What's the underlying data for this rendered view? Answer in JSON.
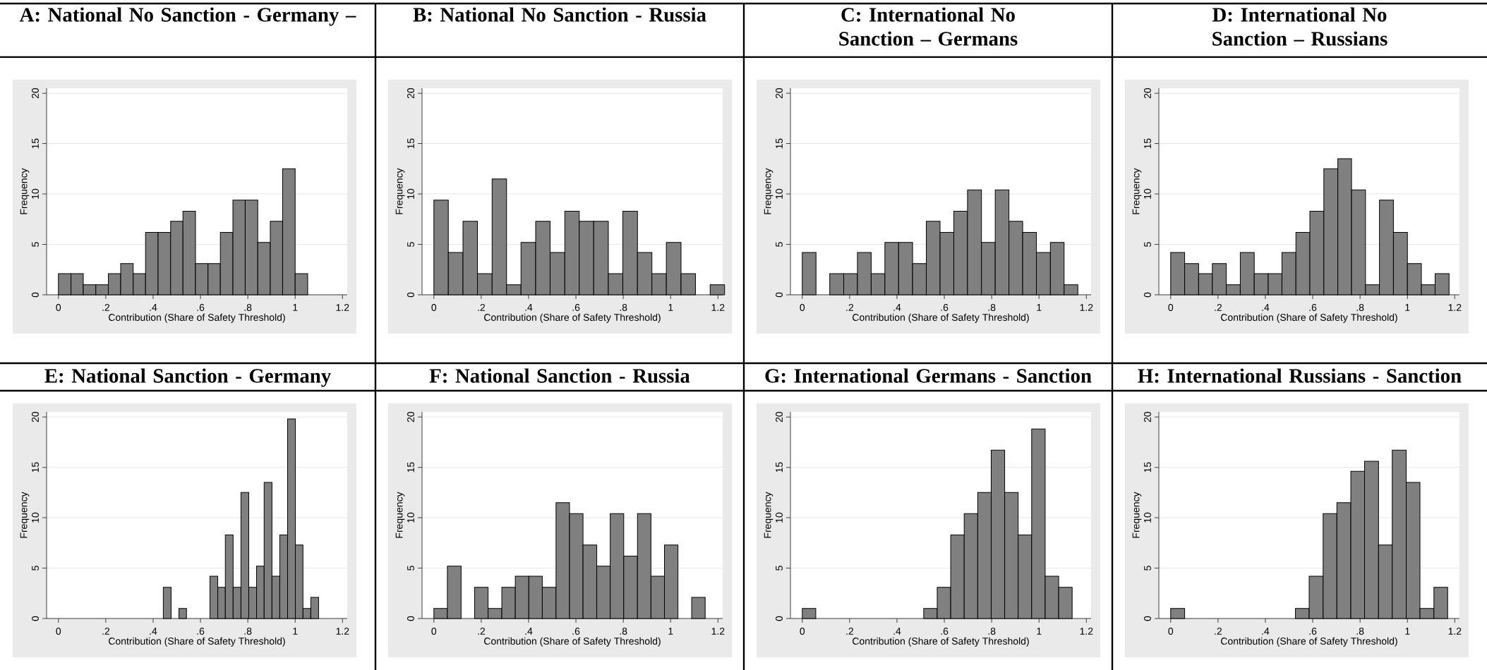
{
  "chart_data": [
    {
      "type": "histogram",
      "title": "A: National No Sanction - Germany –",
      "xlabel": "Contribution (Share of Safety Threshold)",
      "ylabel": "Frequency",
      "color": "#808080",
      "grid": "y",
      "xlim": [
        -0.05,
        1.22
      ],
      "ylim": [
        0,
        20.5
      ],
      "xticks": [
        0,
        {
          "value": 0.2,
          "label": ".2"
        },
        {
          "value": 0.4,
          "label": ".4"
        },
        {
          "value": 0.6,
          "label": ".6"
        },
        {
          "value": 0.8,
          "label": ".8"
        },
        1,
        1.2
      ],
      "yticks": [
        0,
        5,
        10,
        15,
        20
      ],
      "bins": [
        0,
        0.053,
        0.105,
        0.158,
        0.211,
        0.263,
        0.316,
        0.368,
        0.421,
        0.474,
        0.526,
        0.579,
        0.632,
        0.684,
        0.737,
        0.789,
        0.842,
        0.895,
        0.947,
        1.0,
        1.053
      ],
      "values": [
        2.1,
        2.1,
        1,
        1,
        2.1,
        3.1,
        2.1,
        6.2,
        6.2,
        7.3,
        8.3,
        3.1,
        3.1,
        6.2,
        9.4,
        9.4,
        5.2,
        7.3,
        12.5,
        2.1
      ]
    },
    {
      "type": "histogram",
      "title": "B: National No Sanction - Russia",
      "xlabel": "Contribution (Share of Safety Threshold)",
      "ylabel": "Frequency",
      "color": "#808080",
      "grid": "y",
      "xlim": [
        -0.05,
        1.22
      ],
      "ylim": [
        0,
        20.5
      ],
      "xticks": [
        0,
        {
          "value": 0.2,
          "label": ".2"
        },
        {
          "value": 0.4,
          "label": ".4"
        },
        {
          "value": 0.6,
          "label": ".6"
        },
        {
          "value": 0.8,
          "label": ".8"
        },
        1,
        1.2
      ],
      "yticks": [
        0,
        5,
        10,
        15,
        20
      ],
      "bins": [
        0,
        0.061,
        0.123,
        0.184,
        0.246,
        0.307,
        0.368,
        0.43,
        0.491,
        0.553,
        0.614,
        0.675,
        0.737,
        0.798,
        0.86,
        0.921,
        0.982,
        1.044,
        1.105,
        1.167,
        1.228
      ],
      "values": [
        9.4,
        4.2,
        7.3,
        2.1,
        11.5,
        1,
        5.2,
        7.3,
        4.2,
        8.3,
        7.3,
        7.3,
        2.1,
        8.3,
        4.2,
        2.1,
        5.2,
        2.1,
        0,
        1
      ]
    },
    {
      "type": "histogram",
      "title": "C: International No Sanction – Germans",
      "xlabel": "Contribution (Share of Safety Threshold)",
      "ylabel": "Frequency",
      "color": "#808080",
      "grid": "y",
      "xlim": [
        -0.05,
        1.22
      ],
      "ylim": [
        0,
        20.5
      ],
      "xticks": [
        0,
        {
          "value": 0.2,
          "label": ".2"
        },
        {
          "value": 0.4,
          "label": ".4"
        },
        {
          "value": 0.6,
          "label": ".6"
        },
        {
          "value": 0.8,
          "label": ".8"
        },
        1,
        1.2
      ],
      "yticks": [
        0,
        5,
        10,
        15,
        20
      ],
      "bins": [
        0,
        0.058,
        0.116,
        0.175,
        0.233,
        0.291,
        0.349,
        0.407,
        0.466,
        0.524,
        0.582,
        0.64,
        0.698,
        0.757,
        0.815,
        0.873,
        0.931,
        0.989,
        1.048,
        1.106,
        1.164
      ],
      "values": [
        4.2,
        0,
        2.1,
        2.1,
        4.2,
        2.1,
        5.2,
        5.2,
        3.1,
        7.3,
        6.2,
        8.3,
        10.4,
        5.2,
        10.4,
        7.3,
        6.2,
        4.2,
        5.2,
        1
      ]
    },
    {
      "type": "histogram",
      "title": "D: International No Sanction – Russians",
      "xlabel": "Contribution (Share of Safety Threshold)",
      "ylabel": "Frequency",
      "color": "#808080",
      "grid": "y",
      "xlim": [
        -0.05,
        1.22
      ],
      "ylim": [
        0,
        20.5
      ],
      "xticks": [
        0,
        {
          "value": 0.2,
          "label": ".2"
        },
        {
          "value": 0.4,
          "label": ".4"
        },
        {
          "value": 0.6,
          "label": ".6"
        },
        {
          "value": 0.8,
          "label": ".8"
        },
        1,
        1.2
      ],
      "yticks": [
        0,
        5,
        10,
        15,
        20
      ],
      "bins": [
        0,
        0.059,
        0.118,
        0.176,
        0.235,
        0.294,
        0.353,
        0.412,
        0.47,
        0.529,
        0.588,
        0.647,
        0.706,
        0.764,
        0.823,
        0.882,
        0.941,
        1.0,
        1.059,
        1.117,
        1.176
      ],
      "values": [
        4.2,
        3.1,
        2.1,
        3.1,
        1,
        4.2,
        2.1,
        2.1,
        4.2,
        6.2,
        8.3,
        12.5,
        13.5,
        10.4,
        1,
        9.4,
        6.2,
        3.1,
        1,
        2.1
      ]
    },
    {
      "type": "histogram",
      "title": "E: National Sanction - Germany",
      "xlabel": "Contribution (Share of Safety Threshold)",
      "ylabel": "Frequency",
      "color": "#808080",
      "grid": "y",
      "xlim": [
        -0.05,
        1.22
      ],
      "ylim": [
        0,
        20.5
      ],
      "xticks": [
        0,
        {
          "value": 0.2,
          "label": ".2"
        },
        {
          "value": 0.4,
          "label": ".4"
        },
        {
          "value": 0.6,
          "label": ".6"
        },
        {
          "value": 0.8,
          "label": ".8"
        },
        1,
        1.2
      ],
      "yticks": [
        0,
        5,
        10,
        15,
        20
      ],
      "bins": [
        0.443,
        0.476,
        0.509,
        0.541,
        0.574,
        0.607,
        0.64,
        0.673,
        0.705,
        0.738,
        0.771,
        0.804,
        0.837,
        0.869,
        0.902,
        0.935,
        0.968,
        1.001,
        1.033,
        1.066,
        1.099
      ],
      "values": [
        3.1,
        0,
        1,
        0,
        0,
        0,
        4.2,
        3.1,
        8.3,
        3.1,
        12.5,
        3.1,
        5.2,
        13.5,
        4.2,
        8.3,
        19.8,
        7.3,
        1,
        2.1
      ]
    },
    {
      "type": "histogram",
      "title": "F: National Sanction - Russia",
      "xlabel": "Contribution (Share of Safety Threshold)",
      "ylabel": "Frequency",
      "color": "#808080",
      "grid": "y",
      "xlim": [
        -0.05,
        1.22
      ],
      "ylim": [
        0,
        20.5
      ],
      "xticks": [
        0,
        {
          "value": 0.2,
          "label": ".2"
        },
        {
          "value": 0.4,
          "label": ".4"
        },
        {
          "value": 0.6,
          "label": ".6"
        },
        {
          "value": 0.8,
          "label": ".8"
        },
        1,
        1.2
      ],
      "yticks": [
        0,
        5,
        10,
        15,
        20
      ],
      "bins": [
        0,
        0.057,
        0.115,
        0.172,
        0.229,
        0.287,
        0.344,
        0.401,
        0.458,
        0.516,
        0.573,
        0.63,
        0.688,
        0.745,
        0.802,
        0.86,
        0.917,
        0.974,
        1.031,
        1.089,
        1.146
      ],
      "values": [
        1,
        5.2,
        0,
        3.1,
        1,
        3.1,
        4.2,
        4.2,
        3.1,
        11.5,
        10.4,
        7.3,
        5.2,
        10.4,
        6.2,
        10.4,
        4.2,
        7.3,
        0,
        2.1
      ]
    },
    {
      "type": "histogram",
      "title": "G: International Germans - Sanction",
      "xlabel": "Contribution (Share of Safety Threshold)",
      "ylabel": "Frequency",
      "color": "#808080",
      "grid": "y",
      "xlim": [
        -0.05,
        1.22
      ],
      "ylim": [
        0,
        20.5
      ],
      "xticks": [
        0,
        {
          "value": 0.2,
          "label": ".2"
        },
        {
          "value": 0.4,
          "label": ".4"
        },
        {
          "value": 0.6,
          "label": ".6"
        },
        {
          "value": 0.8,
          "label": ".8"
        },
        1,
        1.2
      ],
      "yticks": [
        0,
        5,
        10,
        15,
        20
      ],
      "bins": [
        0,
        0.057,
        0.114,
        0.171,
        0.228,
        0.285,
        0.342,
        0.399,
        0.456,
        0.513,
        0.57,
        0.627,
        0.684,
        0.741,
        0.798,
        0.855,
        0.912,
        0.969,
        1.026,
        1.083,
        1.14
      ],
      "values": [
        1,
        0,
        0,
        0,
        0,
        0,
        0,
        0,
        0,
        1,
        3.1,
        8.3,
        10.4,
        12.5,
        16.7,
        12.5,
        8.3,
        18.8,
        4.2,
        3.1
      ]
    },
    {
      "type": "histogram",
      "title": "H: International Russians - Sanction",
      "xlabel": "Contribution (Share of Safety Threshold)",
      "ylabel": "Frequency",
      "color": "#808080",
      "grid": "y",
      "xlim": [
        -0.05,
        1.22
      ],
      "ylim": [
        0,
        20.5
      ],
      "xticks": [
        0,
        {
          "value": 0.2,
          "label": ".2"
        },
        {
          "value": 0.4,
          "label": ".4"
        },
        {
          "value": 0.6,
          "label": ".6"
        },
        {
          "value": 0.8,
          "label": ".8"
        },
        1,
        1.2
      ],
      "yticks": [
        0,
        5,
        10,
        15,
        20
      ],
      "bins": [
        0,
        0.059,
        0.117,
        0.176,
        0.234,
        0.293,
        0.351,
        0.41,
        0.468,
        0.527,
        0.585,
        0.644,
        0.702,
        0.761,
        0.819,
        0.878,
        0.936,
        0.995,
        1.053,
        1.112,
        1.17
      ],
      "values": [
        1,
        0,
        0,
        0,
        0,
        0,
        0,
        0,
        0,
        1,
        4.2,
        10.4,
        11.5,
        14.6,
        15.6,
        7.3,
        16.7,
        13.5,
        1,
        3.1
      ]
    }
  ]
}
